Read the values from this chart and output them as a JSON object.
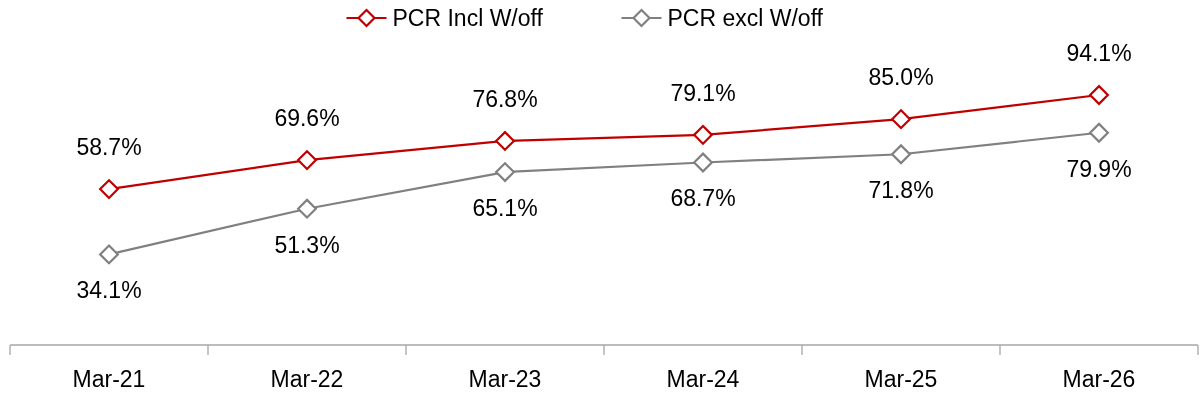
{
  "chart_data": {
    "type": "line",
    "categories": [
      "Mar-21",
      "Mar-22",
      "Mar-23",
      "Mar-24",
      "Mar-25",
      "Mar-26"
    ],
    "series": [
      {
        "name": "PCR Incl W/off",
        "color": "#c00000",
        "values": [
          58.7,
          69.6,
          76.8,
          79.1,
          85.0,
          94.1
        ],
        "value_labels": [
          "58.7%",
          "69.6%",
          "76.8%",
          "79.1%",
          "85.0%",
          "94.1%"
        ]
      },
      {
        "name": "PCR excl W/off",
        "color": "#808080",
        "values": [
          34.1,
          51.3,
          65.1,
          68.7,
          71.8,
          79.9
        ],
        "value_labels": [
          "34.1%",
          "51.3%",
          "65.1%",
          "68.7%",
          "71.8%",
          "79.9%"
        ]
      }
    ],
    "marker": "diamond",
    "legend": "top"
  }
}
